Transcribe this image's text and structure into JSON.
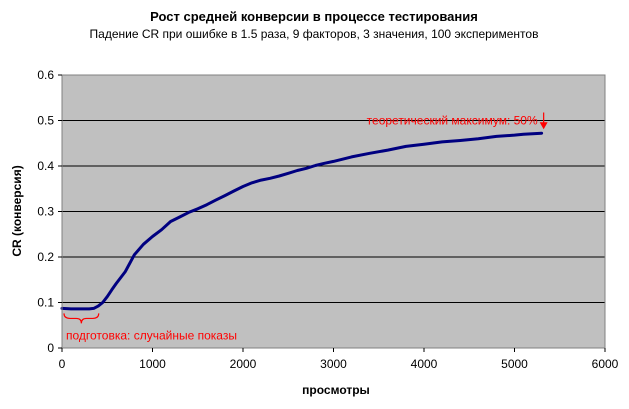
{
  "chart_data": {
    "type": "line",
    "title": "Рост средней конверсии в процессе тестирования",
    "subtitle": "Падение CR при ошибке в 1.5 раза, 9 факторов, 3 значения, 100 экспериментов",
    "xlabel": "просмотры",
    "ylabel": "CR (конверсия)",
    "xlim": [
      0,
      6000
    ],
    "ylim": [
      0,
      0.6
    ],
    "xticks": [
      "0",
      "1000",
      "2000",
      "3000",
      "4000",
      "5000",
      "6000"
    ],
    "yticks": [
      "0",
      "0.1",
      "0.2",
      "0.3",
      "0.4",
      "0.5",
      "0.6"
    ],
    "grid": true,
    "plot_background": "#c0c0c0",
    "series": [
      {
        "color": "#000080",
        "x": [
          0,
          100,
          200,
          300,
          350,
          400,
          450,
          500,
          550,
          600,
          650,
          700,
          800,
          900,
          1000,
          1100,
          1200,
          1300,
          1400,
          1500,
          1600,
          1700,
          1800,
          1900,
          2000,
          2100,
          2200,
          2300,
          2400,
          2500,
          2600,
          2700,
          2800,
          2900,
          3000,
          3200,
          3400,
          3600,
          3800,
          4000,
          4200,
          4400,
          4600,
          4800,
          5000,
          5100,
          5200,
          5300
        ],
        "y": [
          0.087,
          0.086,
          0.086,
          0.086,
          0.087,
          0.092,
          0.1,
          0.113,
          0.128,
          0.142,
          0.155,
          0.168,
          0.205,
          0.228,
          0.245,
          0.26,
          0.278,
          0.288,
          0.298,
          0.306,
          0.315,
          0.325,
          0.335,
          0.345,
          0.355,
          0.363,
          0.369,
          0.373,
          0.378,
          0.384,
          0.39,
          0.395,
          0.401,
          0.406,
          0.41,
          0.42,
          0.428,
          0.435,
          0.443,
          0.448,
          0.453,
          0.456,
          0.46,
          0.465,
          0.468,
          0.47,
          0.471,
          0.472
        ]
      }
    ],
    "annotations": [
      {
        "text": "теоретический максимум: 50%",
        "color": "#ff0000",
        "x": 5300,
        "y": 0.5
      },
      {
        "text": "подготовка: случайные показы",
        "color": "#ff0000",
        "x_range": [
          0,
          450
        ],
        "y": 0.065
      }
    ]
  }
}
